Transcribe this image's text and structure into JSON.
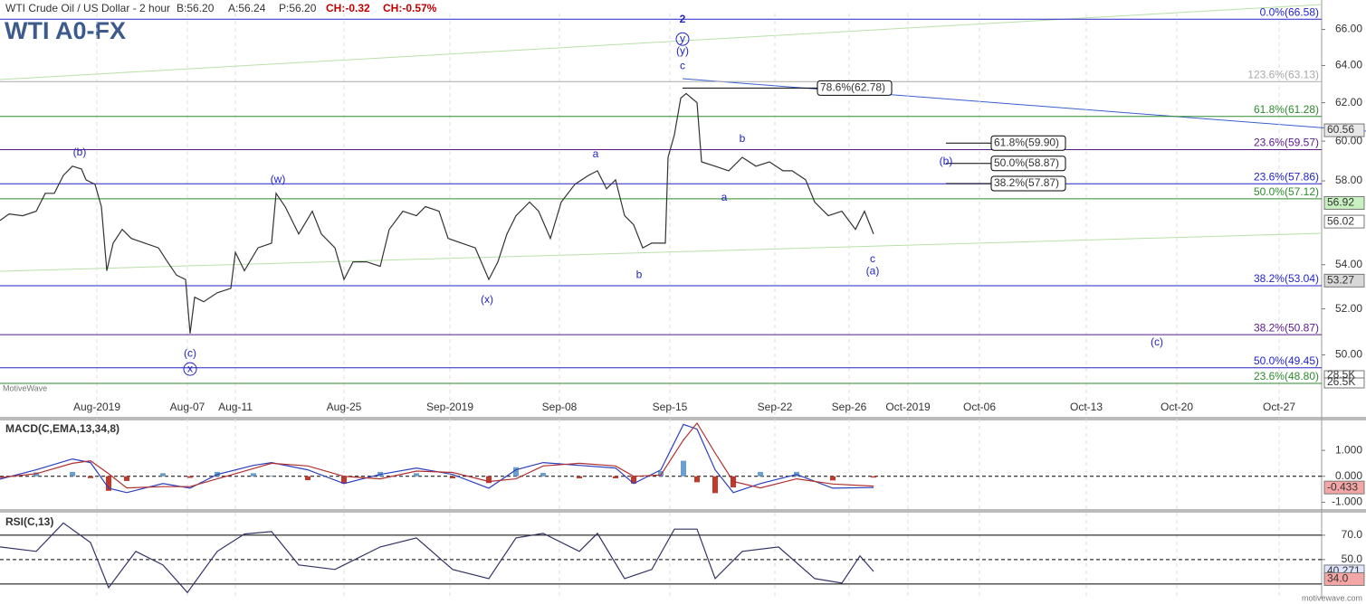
{
  "header": {
    "instrument": "WTI Crude Oil / US Dollar - 2 hour",
    "quotes": [
      "B:56.20",
      "A:56.24",
      "P:56.20"
    ],
    "changes": [
      "CH:-0.32",
      "CH:-0.57%"
    ]
  },
  "watermark": "MotiveWave",
  "footer": "motivewave.com",
  "chart_data": [
    {
      "type": "line",
      "title": "WTI A0-FX",
      "log_scale": true,
      "grid": true,
      "xlim": [
        0,
        1460
      ],
      "ylim": [
        48.2,
        66.9
      ],
      "xticks": [
        {
          "value": 107,
          "label": "Aug-2019"
        },
        {
          "value": 207,
          "label": "Aug-07"
        },
        {
          "value": 260,
          "label": "Aug-11"
        },
        {
          "value": 380,
          "label": "Aug-25"
        },
        {
          "value": 497,
          "label": "Sep-2019"
        },
        {
          "value": 618,
          "label": "Sep-08"
        },
        {
          "value": 740,
          "label": "Sep-15"
        },
        {
          "value": 856,
          "label": "Sep-22"
        },
        {
          "value": 938,
          "label": "Sep-26"
        },
        {
          "value": 1003,
          "label": "Oct-2019"
        },
        {
          "value": 1082,
          "label": "Oct-06"
        },
        {
          "value": 1200,
          "label": "Oct-13"
        },
        {
          "value": 1300,
          "label": "Oct-20"
        },
        {
          "value": 1413,
          "label": "Oct-27"
        }
      ],
      "yticks": [
        {
          "value": 50,
          "label": "50.00"
        },
        {
          "value": 52,
          "label": "52.00"
        },
        {
          "value": 54,
          "label": "54.00"
        },
        {
          "value": 58,
          "label": "58.00"
        },
        {
          "value": 60,
          "label": "60.00"
        },
        {
          "value": 62,
          "label": "62.00"
        },
        {
          "value": 64,
          "label": "64.00"
        },
        {
          "value": 66,
          "label": "66.00"
        }
      ],
      "x": [
        0,
        10,
        25,
        40,
        50,
        60,
        70,
        80,
        90,
        95,
        105,
        112,
        118,
        125,
        135,
        145,
        160,
        175,
        185,
        195,
        205,
        210,
        215,
        225,
        240,
        255,
        260,
        270,
        285,
        300,
        305,
        315,
        330,
        345,
        355,
        370,
        380,
        390,
        405,
        420,
        430,
        445,
        460,
        470,
        485,
        495,
        510,
        525,
        540,
        550,
        560,
        570,
        585,
        595,
        608,
        620,
        635,
        650,
        660,
        670,
        680,
        690,
        700,
        710,
        720,
        735,
        738,
        745,
        752,
        758,
        770,
        775,
        790,
        805,
        820,
        835,
        850,
        865,
        875,
        890,
        900,
        915,
        930,
        945,
        955,
        965
      ],
      "series": [
        {
          "color": "#333333",
          "values": [
            56.07,
            56.39,
            56.3,
            56.52,
            57.39,
            57.39,
            58.27,
            58.73,
            58.59,
            58.05,
            57.83,
            56.74,
            53.72,
            55.0,
            55.65,
            55.22,
            55.0,
            54.78,
            54.13,
            53.52,
            53.32,
            50.92,
            52.52,
            52.32,
            52.72,
            52.92,
            54.57,
            53.72,
            54.78,
            55.0,
            57.39,
            56.74,
            55.43,
            56.52,
            55.43,
            54.78,
            53.32,
            54.13,
            54.13,
            53.92,
            55.65,
            56.52,
            56.3,
            56.74,
            56.52,
            55.22,
            55.0,
            54.78,
            53.32,
            54.13,
            55.43,
            56.3,
            56.96,
            56.52,
            55.22,
            56.96,
            57.83,
            58.27,
            58.5,
            57.61,
            58.05,
            56.3,
            55.87,
            54.78,
            55.0,
            55.0,
            59.18,
            60.33,
            62.24,
            62.49,
            62.0,
            58.95,
            58.73,
            58.5,
            59.18,
            58.73,
            58.95,
            58.5,
            58.5,
            58.05,
            56.96,
            56.3,
            56.52,
            55.65,
            56.52,
            55.43
          ]
        }
      ],
      "levels": [
        {
          "label": "0.0%(66.58)",
          "value": 66.58,
          "color": "#2323c8"
        },
        {
          "label": "123.6%(63.13)",
          "value": 63.13,
          "color": "#aaaaaa"
        },
        {
          "label": "61.8%(61.28)",
          "value": 61.28,
          "color": "#2e8b2e"
        },
        {
          "label": "23.6%(59.57)",
          "value": 59.57,
          "color": "#5a1a8a"
        },
        {
          "label": "23.6%(57.86)",
          "value": 57.86,
          "color": "#2323c8"
        },
        {
          "label": "50.0%(57.12)",
          "value": 57.12,
          "color": "#2e8b2e"
        },
        {
          "label": "38.2%(53.04)",
          "value": 53.04,
          "color": "#2323c8"
        },
        {
          "label": "38.2%(50.87)",
          "value": 50.87,
          "color": "#5a1a8a"
        },
        {
          "label": "50.0%(49.45)",
          "value": 49.45,
          "color": "#2323c8"
        },
        {
          "label": "23.6%(48.80)",
          "value": 48.8,
          "color": "#2e8b2e"
        }
      ],
      "projections": [
        {
          "label": "78.6%(62.78)",
          "value": 62.78,
          "x": 754,
          "x2": 903
        },
        {
          "label": "61.8%(59.90)",
          "value": 59.9,
          "x": 1045,
          "x2": 1095
        },
        {
          "label": "50.0%(58.87)",
          "value": 58.87,
          "x": 1045,
          "x2": 1095
        },
        {
          "label": "38.2%(57.87)",
          "value": 57.87,
          "x": 1045,
          "x2": 1095
        }
      ],
      "annotations": [
        {
          "text": "2",
          "x": 754,
          "y": 66.54
        },
        {
          "text": "y",
          "x": 754,
          "y": 65.46
        },
        {
          "text": "(y)",
          "x": 754,
          "y": 64.78
        },
        {
          "text": "c",
          "x": 754,
          "y": 63.95
        },
        {
          "text": "(b)",
          "x": 88,
          "y": 59.41
        },
        {
          "text": "(w)",
          "x": 307,
          "y": 58.05
        },
        {
          "text": "(c)",
          "x": 210,
          "y": 50.04
        },
        {
          "text": "x",
          "x": 210,
          "y": 49.4
        },
        {
          "text": "(x)",
          "x": 538,
          "y": 52.4
        },
        {
          "text": "a",
          "x": 658,
          "y": 59.32
        },
        {
          "text": "b",
          "x": 706,
          "y": 53.52
        },
        {
          "text": "b",
          "x": 820,
          "y": 60.1
        },
        {
          "text": "a",
          "x": 800,
          "y": 57.17
        },
        {
          "text": "c",
          "x": 964,
          "y": 54.24
        },
        {
          "text": "(a)",
          "x": 964,
          "y": 53.68
        },
        {
          "text": "(b)",
          "x": 1045,
          "y": 58.95
        },
        {
          "text": "(c)",
          "x": 1278,
          "y": 50.52
        }
      ],
      "axis_badges": [
        {
          "value": 60.56,
          "label": "60.56",
          "color": "#e8e8e8"
        },
        {
          "value": 56.92,
          "label": "56.92",
          "color": "#c8f0c0"
        },
        {
          "value": 56.02,
          "label": "56.02",
          "color": "#ffffff"
        },
        {
          "value": 53.27,
          "label": "53.27",
          "color": "#d8d8d8"
        }
      ],
      "volume_badges": [
        "28.5K",
        "26.5K"
      ]
    },
    {
      "type": "macd",
      "title": "MACD(C,EMA,13,34,8)",
      "ylim": [
        -1.23,
        2.12
      ],
      "yticks": [
        {
          "value": -1,
          "label": "-1.000"
        },
        {
          "value": 0,
          "label": "0.000"
        },
        {
          "value": 1,
          "label": "1.000"
        }
      ],
      "x": [
        0,
        40,
        80,
        100,
        120,
        140,
        180,
        210,
        240,
        280,
        300,
        340,
        380,
        420,
        460,
        500,
        540,
        570,
        600,
        640,
        680,
        700,
        730,
        755,
        770,
        790,
        810,
        840,
        880,
        920,
        965
      ],
      "series": [
        {
          "color": "#2b3fbf",
          "values": [
            -0.11,
            0.25,
            0.67,
            0.53,
            -0.46,
            -0.63,
            -0.28,
            -0.46,
            0.07,
            0.42,
            0.53,
            0.25,
            -0.28,
            0.07,
            0.32,
            0.07,
            -0.46,
            0.25,
            0.53,
            0.42,
            0.32,
            -0.28,
            0.25,
            2.0,
            1.82,
            0.25,
            -0.63,
            -0.28,
            0.07,
            -0.46,
            -0.433
          ]
        },
        {
          "color": "#b03030",
          "values": [
            -0.05,
            0.1,
            0.5,
            0.6,
            0.1,
            -0.45,
            -0.4,
            -0.4,
            -0.1,
            0.3,
            0.5,
            0.4,
            0.0,
            -0.1,
            0.2,
            0.15,
            -0.2,
            -0.1,
            0.4,
            0.5,
            0.4,
            0.0,
            0.05,
            1.4,
            2.05,
            0.9,
            -0.2,
            -0.45,
            -0.1,
            -0.3,
            -0.38
          ]
        }
      ],
      "histogram": [
        -0.06,
        0.15,
        0.17,
        -0.07,
        -0.56,
        -0.18,
        0.12,
        -0.06,
        0.17,
        0.12,
        0.03,
        -0.15,
        -0.28,
        0.17,
        0.12,
        -0.08,
        -0.26,
        0.35,
        0.13,
        -0.08,
        -0.08,
        -0.28,
        0.2,
        0.6,
        -0.23,
        -0.65,
        -0.43,
        0.17,
        0.17,
        -0.16,
        -0.05
      ],
      "histogram_colors": {
        "up": "#6a9fd0",
        "down": "#c0392b"
      },
      "axis_badges": [
        {
          "value": -0.433,
          "label": "-0.433",
          "color": "#f4a6a6"
        }
      ]
    },
    {
      "type": "rsi",
      "title": "RSI(C,13)",
      "ylim": [
        18,
        87
      ],
      "yticks": [
        {
          "value": 50,
          "label": "50.0"
        },
        {
          "value": 70,
          "label": "70.0"
        }
      ],
      "levels": [
        30,
        50,
        70
      ],
      "x": [
        0,
        40,
        70,
        100,
        120,
        150,
        180,
        207,
        240,
        270,
        300,
        330,
        370,
        420,
        460,
        500,
        540,
        570,
        600,
        640,
        660,
        690,
        720,
        745,
        770,
        790,
        820,
        860,
        900,
        930,
        950,
        965
      ],
      "series": [
        {
          "color": "#333366",
          "values": [
            60.4,
            56.7,
            80,
            64,
            27,
            56.7,
            45.6,
            23,
            56.7,
            71,
            73,
            45.6,
            41.9,
            60.4,
            67.8,
            41.9,
            34.4,
            67.8,
            71.5,
            56.7,
            71.5,
            34.4,
            41.9,
            75,
            75,
            34.4,
            56.7,
            60.4,
            34.4,
            30.7,
            53,
            40.271
          ]
        }
      ],
      "axis_badges": [
        {
          "value": 40.271,
          "label": "40.271",
          "color": "#e0e6ff"
        },
        {
          "value": 34.0,
          "label": "34.0",
          "color": "#f4a6a6"
        }
      ]
    }
  ]
}
